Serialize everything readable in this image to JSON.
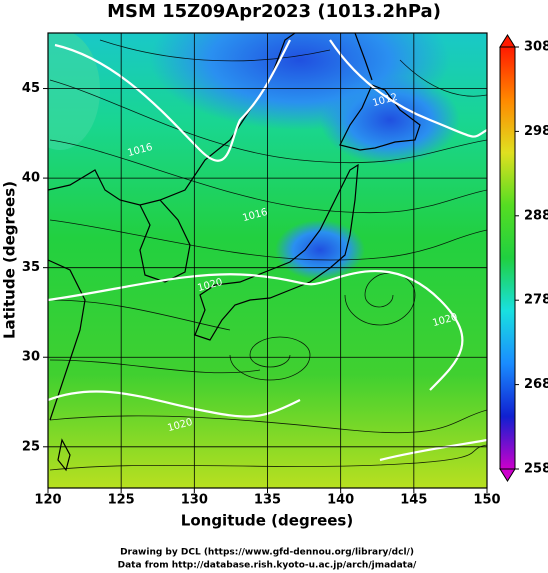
{
  "title": "MSM 15Z09Apr2023 (1013.2hPa)",
  "x_axis": {
    "label": "Longitude (degrees)",
    "lim": [
      120,
      150
    ],
    "ticks": [
      120,
      125,
      130,
      135,
      140,
      145,
      150
    ]
  },
  "y_axis": {
    "label": "Latitude  (degrees)",
    "lim": [
      22.7,
      48.1
    ],
    "ticks": [
      25,
      30,
      35,
      40,
      45
    ]
  },
  "colorbar": {
    "lim": [
      258,
      308
    ],
    "ticks": [
      258,
      268,
      278,
      288,
      298,
      308
    ],
    "colors": [
      "#cc00cc",
      "#1020d0",
      "#1a8cff",
      "#19e0e0",
      "#20d040",
      "#55dd22",
      "#e0e020",
      "#ff8800",
      "#ff1a00"
    ]
  },
  "contour_labels": [
    "1012",
    "1016",
    "1016",
    "1020",
    "1020",
    "1020"
  ],
  "credits": [
    "Drawing by DCL (https://www.gfd-dennou.org/library/dcl/)",
    "Data from http://database.rish.kyoto-u.ac.jp/arch/jmadata/"
  ]
}
